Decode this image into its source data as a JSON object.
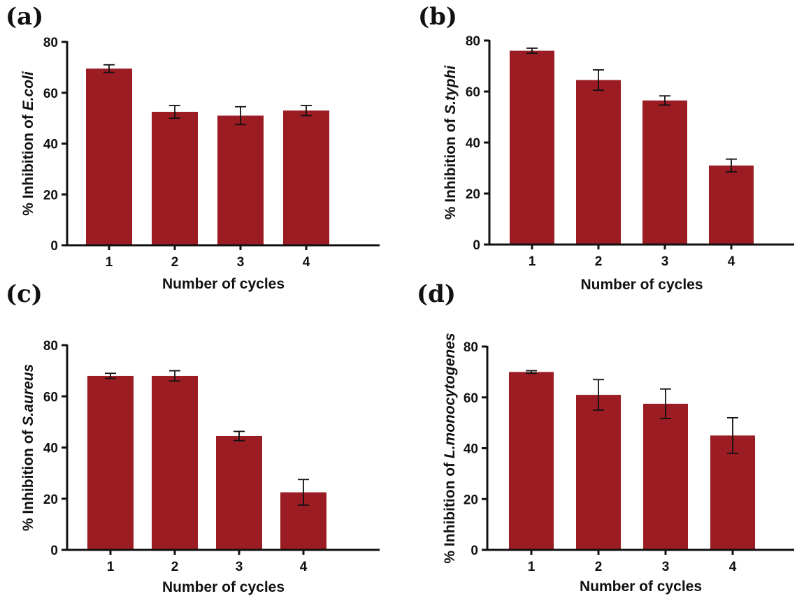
{
  "colors": {
    "bar": "#9b1c22",
    "axis": "#111111"
  },
  "chart_data": [
    {
      "panel": "(a)",
      "type": "bar",
      "categories": [
        "1",
        "2",
        "3",
        "4"
      ],
      "values": [
        69.5,
        52.5,
        51,
        53
      ],
      "errors": [
        1.5,
        2.5,
        3.5,
        2
      ],
      "xlabel": "Number of cycles",
      "ylabel_prefix": "% Inhibition of ",
      "ylabel_species": "E.coli",
      "ylim": [
        0,
        80
      ],
      "yticks": [
        0,
        20,
        40,
        60,
        80
      ]
    },
    {
      "panel": "(b)",
      "type": "bar",
      "categories": [
        "1",
        "2",
        "3",
        "4"
      ],
      "values": [
        76,
        64.5,
        56.5,
        31
      ],
      "errors": [
        1,
        4,
        1.8,
        2.5
      ],
      "xlabel": "Number of cycles",
      "ylabel_prefix": "% Inhibition of ",
      "ylabel_species": "S.typhi",
      "ylim": [
        0,
        80
      ],
      "yticks": [
        0,
        20,
        40,
        60,
        80
      ]
    },
    {
      "panel": "(c)",
      "type": "bar",
      "categories": [
        "1",
        "2",
        "3",
        "4"
      ],
      "values": [
        68,
        68,
        44.5,
        22.5
      ],
      "errors": [
        1,
        2,
        1.8,
        5
      ],
      "xlabel": "Number of cycles",
      "ylabel_prefix": "% Inhibition of ",
      "ylabel_species": "S.aureus",
      "ylim": [
        0,
        80
      ],
      "yticks": [
        0,
        20,
        40,
        60,
        80
      ]
    },
    {
      "panel": "(d)",
      "type": "bar",
      "categories": [
        "1",
        "2",
        "3",
        "4"
      ],
      "values": [
        70,
        61,
        57.5,
        45
      ],
      "errors": [
        0.5,
        6,
        5.8,
        7
      ],
      "xlabel": "Number of cycles",
      "ylabel_prefix": "% Inhibition of ",
      "ylabel_species": "L.monocytogenes",
      "ylim": [
        0,
        80
      ],
      "yticks": [
        0,
        20,
        40,
        60,
        80
      ]
    }
  ]
}
